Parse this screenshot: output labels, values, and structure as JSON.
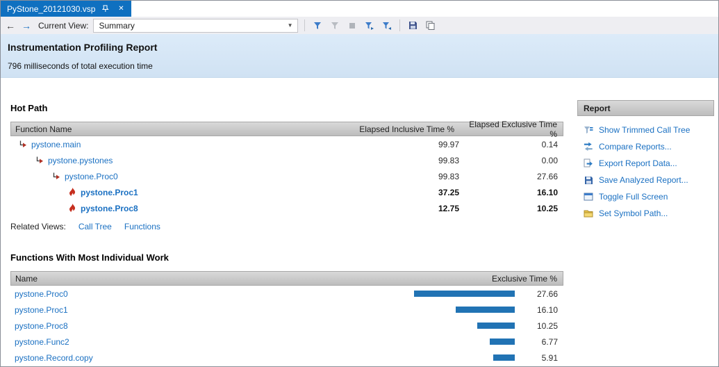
{
  "tab": {
    "title": "PyStone_20121030.vsp"
  },
  "toolbar": {
    "current_view_label": "Current View:",
    "current_view_value": "Summary"
  },
  "header": {
    "title": "Instrumentation Profiling Report",
    "subtitle": "796 milliseconds of total execution time"
  },
  "hot_path": {
    "title": "Hot Path",
    "columns": {
      "name": "Function Name",
      "inclusive": "Elapsed Inclusive Time %",
      "exclusive": "Elapsed Exclusive Time %"
    },
    "rows": [
      {
        "name": "pystone.main",
        "inclusive": "99.97",
        "exclusive": "0.14",
        "icon": "hot-path-icon",
        "bold": false
      },
      {
        "name": "pystone.pystones",
        "inclusive": "99.83",
        "exclusive": "0.00",
        "icon": "hot-path-icon",
        "bold": false
      },
      {
        "name": "pystone.Proc0",
        "inclusive": "99.83",
        "exclusive": "27.66",
        "icon": "hot-path-icon",
        "bold": false
      },
      {
        "name": "pystone.Proc1",
        "inclusive": "37.25",
        "exclusive": "16.10",
        "icon": "flame-icon",
        "bold": true
      },
      {
        "name": "pystone.Proc8",
        "inclusive": "12.75",
        "exclusive": "10.25",
        "icon": "flame-icon",
        "bold": true
      }
    ],
    "related_views": {
      "label": "Related Views:",
      "links": [
        "Call Tree",
        "Functions"
      ]
    }
  },
  "functions_work": {
    "title": "Functions With Most Individual Work",
    "columns": {
      "name": "Name",
      "value": "Exclusive Time %"
    },
    "rows": [
      {
        "name": "pystone.Proc0",
        "value": "27.66"
      },
      {
        "name": "pystone.Proc1",
        "value": "16.10"
      },
      {
        "name": "pystone.Proc8",
        "value": "10.25"
      },
      {
        "name": "pystone.Func2",
        "value": "6.77"
      },
      {
        "name": "pystone.Record.copy",
        "value": "5.91"
      }
    ]
  },
  "report_panel": {
    "title": "Report",
    "items": [
      {
        "label": "Show Trimmed Call Tree",
        "icon": "trimmed-call-tree-icon"
      },
      {
        "label": "Compare Reports...",
        "icon": "compare-reports-icon"
      },
      {
        "label": "Export Report Data...",
        "icon": "export-report-icon"
      },
      {
        "label": "Save Analyzed Report...",
        "icon": "save-report-icon"
      },
      {
        "label": "Toggle Full Screen",
        "icon": "full-screen-icon"
      },
      {
        "label": "Set Symbol Path...",
        "icon": "symbol-path-icon"
      }
    ]
  },
  "colors": {
    "tab_blue": "#0f70c0",
    "link_blue": "#1a70c2",
    "bar_blue": "#2173b4",
    "header_band": "#d7e7f7"
  },
  "chart_data": {
    "type": "bar",
    "title": "Functions With Most Individual Work",
    "categories": [
      "pystone.Proc0",
      "pystone.Proc1",
      "pystone.Proc8",
      "pystone.Func2",
      "pystone.Record.copy"
    ],
    "values": [
      27.66,
      16.1,
      10.25,
      6.77,
      5.91
    ],
    "xlabel": "",
    "ylabel": "Exclusive Time %",
    "legend": false
  }
}
